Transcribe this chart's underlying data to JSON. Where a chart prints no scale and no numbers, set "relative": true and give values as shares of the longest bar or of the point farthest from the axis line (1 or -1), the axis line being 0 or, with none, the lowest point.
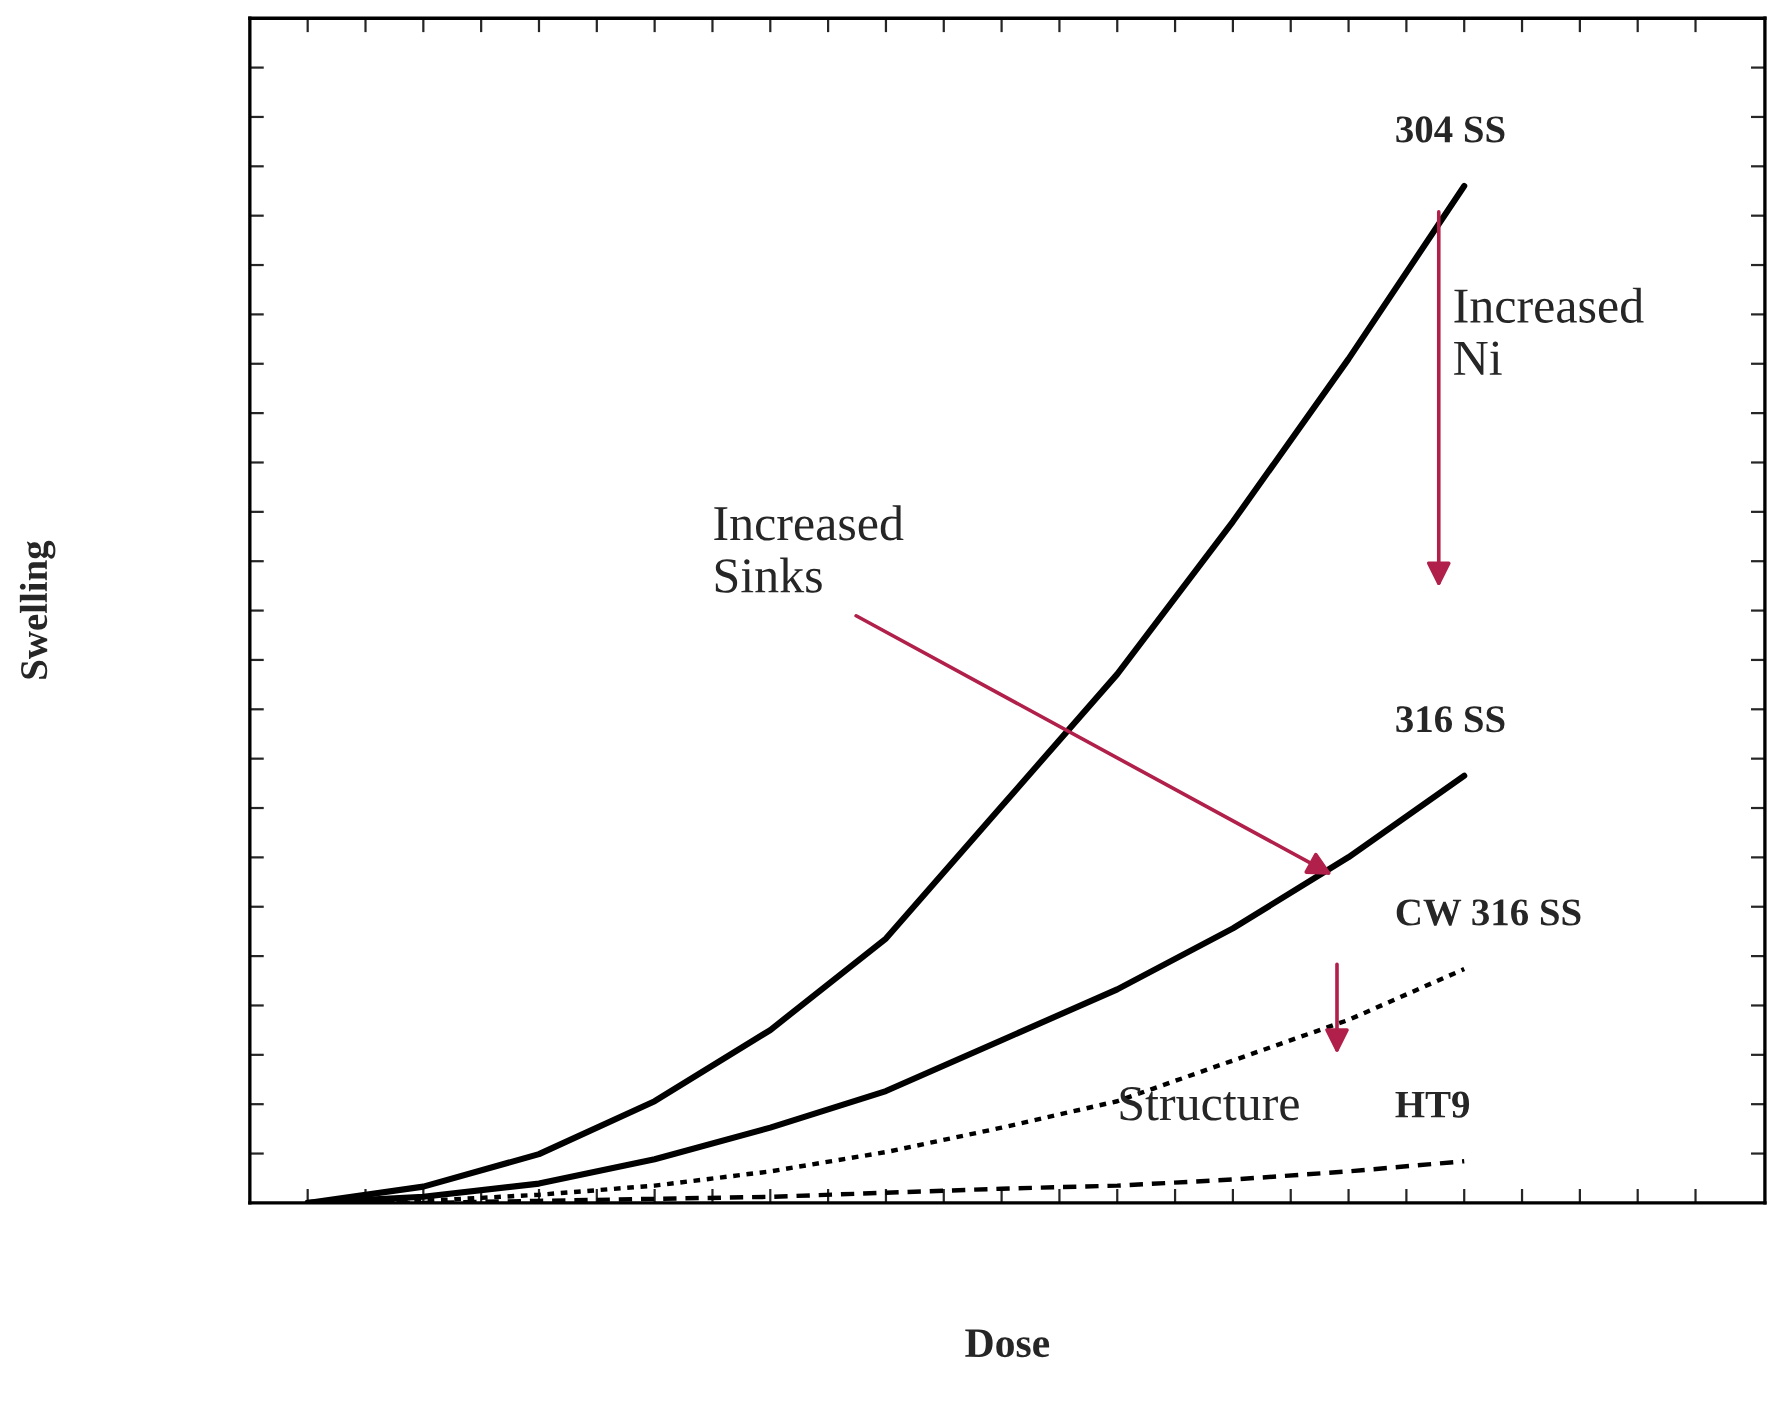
{
  "chart_data": {
    "type": "line",
    "relative": true,
    "xlabel": "Dose",
    "ylabel": "Swelling",
    "tick_labels": false,
    "grid": false,
    "legend": false,
    "marker": "none",
    "categories": [
      null,
      null,
      null,
      null,
      null,
      null,
      null,
      null,
      null,
      null,
      null,
      null,
      null
    ],
    "series": [
      {
        "name": "304 SS",
        "color": "#000000",
        "line_style": "solid",
        "values": [
          0,
          0.016,
          0.048,
          0.1,
          0.17,
          0.26,
          0.39,
          0.52,
          0.67,
          0.83,
          1.0,
          null,
          null
        ]
      },
      {
        "name": "316 SS",
        "color": "#000000",
        "line_style": "solid",
        "values": [
          0,
          0.006,
          0.019,
          0.043,
          0.074,
          0.11,
          0.16,
          0.21,
          0.27,
          0.34,
          0.42,
          null,
          null
        ]
      },
      {
        "name": "CW 316 SS",
        "color": "#000000",
        "line_style": "dotted",
        "values": [
          0,
          0.002,
          0.008,
          0.017,
          0.031,
          0.05,
          0.074,
          0.1,
          0.14,
          0.18,
          0.23,
          null,
          null
        ]
      },
      {
        "name": "HT9",
        "color": "#000000",
        "line_style": "dashed",
        "values": [
          0,
          0,
          0.002,
          0.004,
          0.006,
          0.01,
          0.014,
          0.017,
          0.023,
          0.031,
          0.041,
          null,
          null
        ]
      }
    ],
    "annotations": [
      "Increased\nNi",
      "Increased\nSinks",
      "Structure"
    ]
  }
}
